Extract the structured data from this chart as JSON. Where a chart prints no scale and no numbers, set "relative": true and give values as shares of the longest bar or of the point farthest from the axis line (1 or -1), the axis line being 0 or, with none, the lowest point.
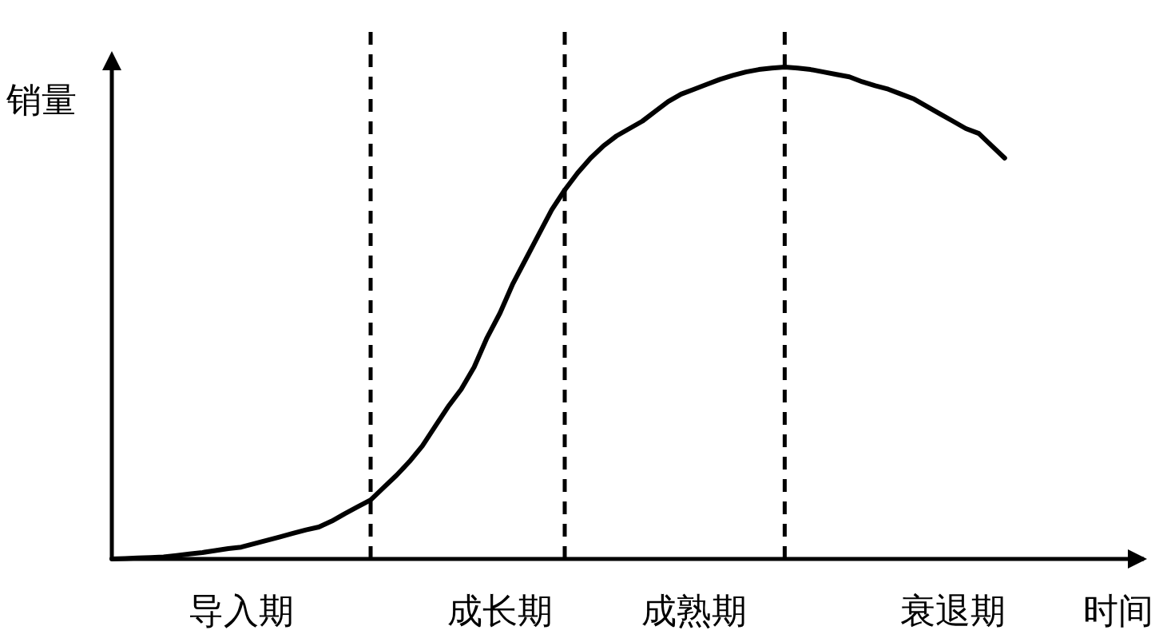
{
  "chart_data": {
    "type": "line",
    "relative": true,
    "xlabel": "时间",
    "ylabel": "销量",
    "categories": [
      null,
      null,
      null,
      null,
      null,
      null,
      null,
      null,
      null,
      null,
      "导入期",
      null,
      null,
      null,
      null,
      null,
      null,
      null,
      null,
      null,
      null,
      null,
      null,
      null,
      null,
      null,
      null,
      null,
      null,
      null,
      "成长期",
      null,
      null,
      null,
      null,
      null,
      null,
      null,
      null,
      null,
      null,
      null,
      null,
      null,
      null,
      "成熟期",
      null,
      null,
      null,
      null,
      null,
      null,
      null,
      null,
      null,
      null,
      null,
      null,
      null,
      null,
      null,
      null,
      null,
      null,
      null,
      "衰退期",
      null,
      null,
      null,
      null,
      null,
      null,
      null,
      null,
      null,
      null,
      null,
      null,
      null,
      null,
      null
    ],
    "series": [
      {
        "color": "#000000",
        "values": [
          0,
          0.001,
          0.002,
          0.003,
          0.004,
          0.007,
          0.01,
          0.013,
          0.017,
          0.021,
          0.024,
          0.031,
          0.038,
          0.045,
          0.052,
          0.059,
          0.065,
          0.077,
          0.092,
          0.106,
          0.12,
          0.145,
          0.17,
          0.198,
          0.23,
          0.27,
          0.31,
          0.345,
          0.39,
          0.45,
          0.5,
          0.56,
          0.61,
          0.66,
          0.71,
          0.75,
          0.785,
          0.815,
          0.84,
          0.86,
          0.875,
          0.89,
          0.91,
          0.93,
          0.945,
          0.955,
          0.965,
          0.975,
          0.983,
          0.99,
          0.995,
          0.998,
          1,
          0.998,
          0.995,
          0.99,
          0.985,
          0.98,
          0.97,
          0.962,
          0.955,
          0.945,
          0.935,
          0.92,
          0.905,
          0.89,
          0.875,
          0.865,
          0.84,
          0.815,
          null,
          null,
          null,
          null,
          null,
          null,
          null,
          null,
          null,
          null,
          null
        ]
      }
    ]
  }
}
